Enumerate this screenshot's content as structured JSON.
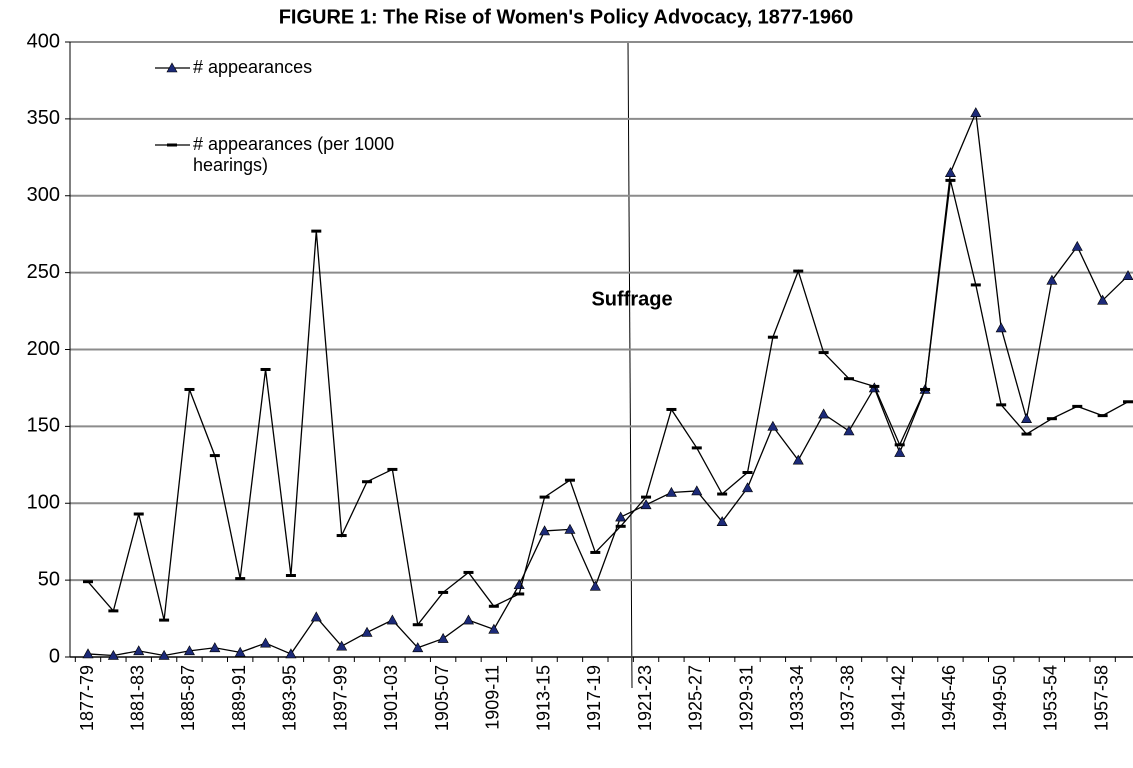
{
  "chart_data": {
    "type": "line",
    "title": "FIGURE 1: The Rise of Women's Policy Advocacy, 1877-1960",
    "annotation": "Suffrage",
    "categories": [
      "1877-79",
      null,
      "1881-83",
      null,
      "1885-87",
      null,
      "1889-91",
      null,
      "1893-95",
      null,
      "1897-99",
      null,
      "1901-03",
      null,
      "1905-07",
      null,
      "1909-11",
      null,
      "1913-15",
      null,
      "1917-19",
      null,
      "1921-23",
      null,
      "1925-27",
      null,
      "1929-31",
      null,
      "1933-34",
      null,
      "1937-38",
      null,
      "1941-42",
      null,
      "1945-46",
      null,
      "1949-50",
      null,
      "1953-54",
      null,
      "1957-58",
      null
    ],
    "series": [
      {
        "name": "# appearances",
        "color": "#000000",
        "marker": "triangle",
        "marker_color": "#1c2a78",
        "values": [
          2,
          1,
          4,
          1,
          4,
          6,
          3,
          9,
          2,
          26,
          7,
          16,
          24,
          6,
          12,
          24,
          18,
          47,
          82,
          83,
          46,
          91,
          99,
          107,
          108,
          88,
          110,
          150,
          128,
          158,
          147,
          175,
          133,
          174,
          315,
          354,
          214,
          155,
          245,
          267,
          232,
          248
        ]
      },
      {
        "name": "# appearances (per 1000 hearings)",
        "color": "#000000",
        "marker": "dash",
        "marker_color": "#000000",
        "values": [
          49,
          30,
          93,
          24,
          174,
          131,
          51,
          187,
          53,
          277,
          79,
          114,
          122,
          21,
          42,
          55,
          33,
          41,
          104,
          115,
          68,
          85,
          104,
          161,
          136,
          106,
          120,
          208,
          251,
          198,
          181,
          176,
          138,
          174,
          310,
          242,
          164,
          145,
          155,
          163,
          157,
          166
        ]
      }
    ],
    "ylim": [
      0,
      400
    ],
    "yticks": [
      0,
      50,
      100,
      150,
      200,
      250,
      300,
      350,
      400
    ],
    "grid": true
  }
}
